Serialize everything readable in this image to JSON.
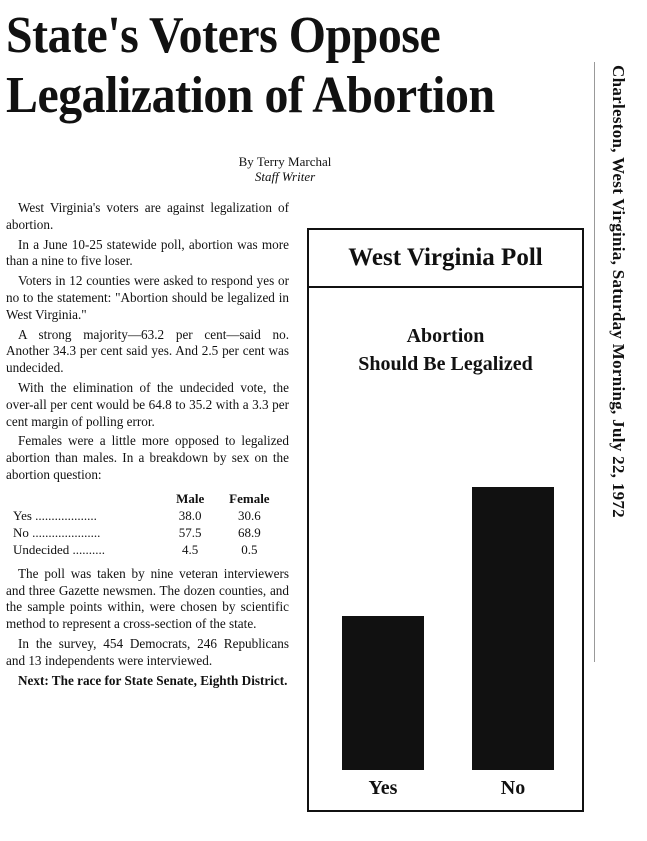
{
  "headline": "State's Voters Oppose Legalization of Abortion",
  "byline": {
    "name": "By Terry Marchal",
    "role": "Staff Writer"
  },
  "paragraphs_before": [
    "West Virginia's voters are against legalization of abortion.",
    "In a June 10-25 statewide poll, abortion was more than a nine to five loser.",
    "Voters in 12 counties were asked to respond yes or no to the statement: \"Abortion should be legalized in West Virginia.\"",
    "A strong majority—63.2 per cent—said no. Another 34.3 per cent said yes. And 2.5 per cent was undecided.",
    "With the elimination of the undecided vote, the over-all per cent would be 64.8 to 35.2 with a 3.3 per cent margin of polling error.",
    "Females were a little more opposed to legalized abortion than males. In a breakdown by sex on the abortion question:"
  ],
  "table": {
    "headers": [
      "",
      "Male",
      "Female"
    ],
    "rows": [
      [
        "Yes ...................",
        "38.0",
        "30.6"
      ],
      [
        "No .....................",
        "57.5",
        "68.9"
      ],
      [
        "Undecided ..........",
        "4.5",
        "0.5"
      ]
    ]
  },
  "paragraphs_after": [
    "The poll was taken by nine veteran interviewers and three Gazette newsmen. The dozen counties, and the sample points within, were chosen by scientific method to represent a cross-section of the state.",
    "In the survey, 454 Democrats, 246 Republicans and 13 independents were interviewed.",
    "Next: The race for State Senate, Eighth District."
  ],
  "dateline": "Charleston, West Virginia, Saturday Morning, July 22, 1972",
  "chart_data": {
    "type": "bar",
    "title": "West Virginia Poll",
    "subtitle_line1": "Abortion",
    "subtitle_line2": "Should Be Legalized",
    "categories": [
      "Yes",
      "No"
    ],
    "values": [
      34.3,
      63.2
    ],
    "bar_color": "#111111",
    "grid": false,
    "axes_shown": false
  }
}
